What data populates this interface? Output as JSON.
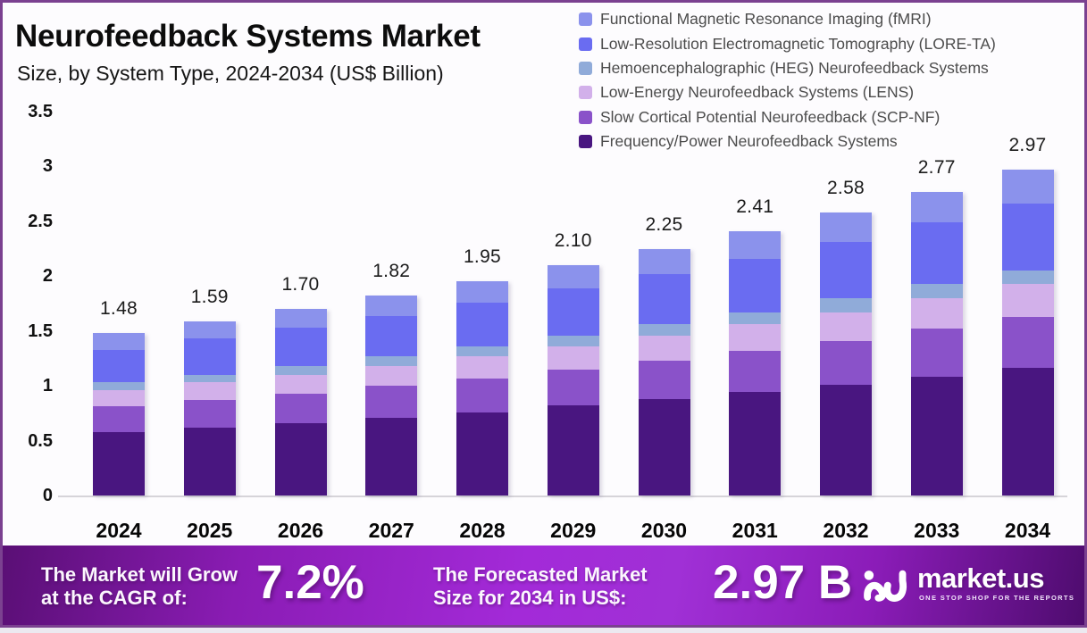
{
  "header": {
    "title": "Neurofeedback Systems Market",
    "subtitle": "Size, by System Type, 2024-2034 (US$ Billion)"
  },
  "chart_data": {
    "type": "bar",
    "stacked": true,
    "unit": "US$ Billion",
    "title": "Neurofeedback Systems Market Size, by System Type, 2024-2034 (US$ Billion)",
    "categories": [
      "2024",
      "2025",
      "2026",
      "2027",
      "2028",
      "2029",
      "2030",
      "2031",
      "2032",
      "2033",
      "2034"
    ],
    "totals_labels": [
      "1.48",
      "1.59",
      "1.70",
      "1.82",
      "1.95",
      "2.10",
      "2.25",
      "2.41",
      "2.58",
      "2.77",
      "2.97"
    ],
    "series": [
      {
        "name": "Frequency/Power Neurofeedback Systems",
        "color": "#491680",
        "values": [
          0.58,
          0.62,
          0.66,
          0.71,
          0.76,
          0.82,
          0.88,
          0.94,
          1.01,
          1.08,
          1.16
        ]
      },
      {
        "name": "Slow Cortical Potential Neurofeedback (SCP-NF)",
        "color": "#8a52c9",
        "values": [
          0.23,
          0.25,
          0.27,
          0.29,
          0.31,
          0.33,
          0.35,
          0.38,
          0.4,
          0.44,
          0.47
        ]
      },
      {
        "name": "Low-Energy Neurofeedback Systems (LENS)",
        "color": "#d2b0ea",
        "values": [
          0.15,
          0.16,
          0.17,
          0.18,
          0.2,
          0.21,
          0.23,
          0.24,
          0.26,
          0.28,
          0.3
        ]
      },
      {
        "name": "Hemoencephalographic (HEG) Neurofeedback Systems",
        "color": "#90abd9",
        "values": [
          0.07,
          0.07,
          0.08,
          0.09,
          0.09,
          0.1,
          0.1,
          0.11,
          0.13,
          0.13,
          0.12
        ]
      },
      {
        "name": "Low-Resolution Electromagnetic Tomography (LORE-TA)",
        "color": "#6a6cf1",
        "values": [
          0.3,
          0.33,
          0.35,
          0.37,
          0.4,
          0.43,
          0.46,
          0.49,
          0.51,
          0.56,
          0.61
        ]
      },
      {
        "name": "Functional Magnetic Resonance Imaging (fMRI)",
        "color": "#8b92ec",
        "values": [
          0.15,
          0.16,
          0.17,
          0.18,
          0.19,
          0.21,
          0.23,
          0.25,
          0.27,
          0.28,
          0.31
        ]
      }
    ],
    "yticks": [
      0,
      0.5,
      1,
      1.5,
      2,
      2.5,
      3,
      3.5
    ],
    "ytick_labels": [
      "0",
      "0.5",
      "1",
      "1.5",
      "2",
      "2.5",
      "3",
      "3.5"
    ],
    "ylim": [
      0,
      3.5
    ],
    "grid": false,
    "legend_position": "top-right",
    "legend_order": "top segment listed first"
  },
  "banner": {
    "cagr_label_line1": "The Market will Grow",
    "cagr_label_line2": "at the CAGR of:",
    "cagr_value": "7.2%",
    "forecast_label_line1": "The Forecasted Market",
    "forecast_label_line2": "Size for 2034 in US$:",
    "forecast_value": "2.97 B",
    "brand": "market.us",
    "brand_tagline": "ONE STOP SHOP FOR THE REPORTS",
    "brand_color": "#a32ad8"
  }
}
